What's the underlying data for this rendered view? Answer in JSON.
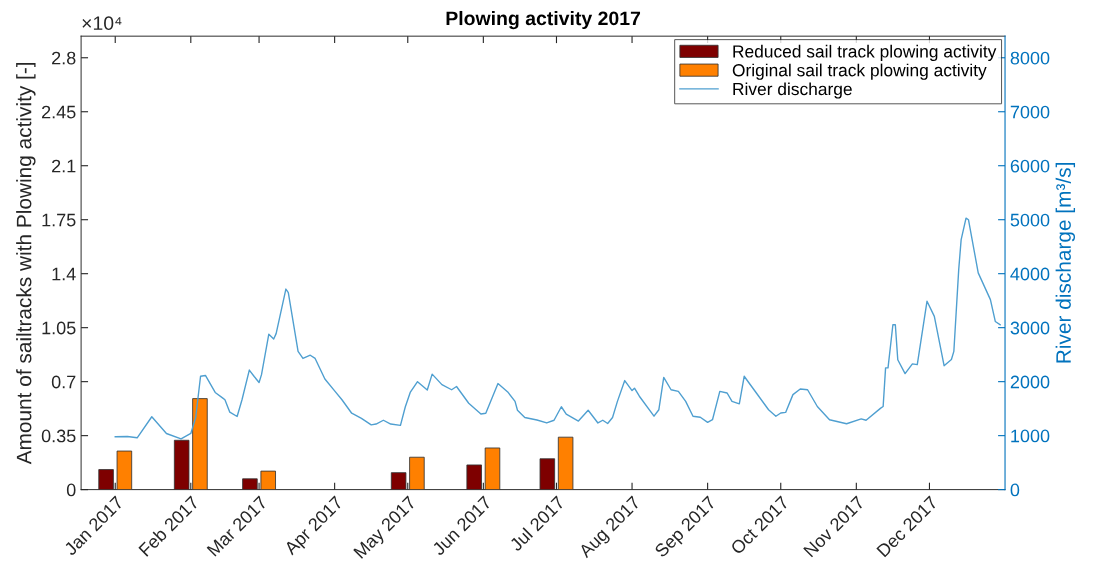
{
  "chart_data": {
    "type": "bar",
    "title": "Plowing activity 2017",
    "ylabel": "Amount of sailtracks with Plowing activity [-]",
    "y2label": "River discharge [m³/s]",
    "annotations": [
      "×10⁴"
    ],
    "x": [
      "2017-01-01",
      "2017-02-01",
      "2017-03-01",
      "2017-04-01",
      "2017-05-01",
      "2017-06-01",
      "2017-07-01"
    ],
    "series": [
      {
        "name": "Reduced sail track plowing activity",
        "color": "#7e0000",
        "values": [
          0.13,
          0.32,
          0.07,
          null,
          0.11,
          0.16,
          0.2
        ]
      },
      {
        "name": "Original sail track plowing activity",
        "color": "#ff8000",
        "values": [
          0.25,
          0.59,
          0.12,
          null,
          0.21,
          0.27,
          0.34
        ]
      },
      {
        "name": "River discharge",
        "type": "line",
        "axis": "y2",
        "color": "#4f9fd0",
        "x": [
          "2017-01-01",
          "2017-01-06",
          "2017-01-10",
          "2017-01-16",
          "2017-01-22",
          "2017-01-28",
          "2017-02-01",
          "2017-02-03",
          "2017-02-05",
          "2017-02-07",
          "2017-02-11",
          "2017-02-14",
          "2017-02-15",
          "2017-02-17",
          "2017-02-20",
          "2017-02-22",
          "2017-02-25",
          "2017-02-27",
          "2017-03-01",
          "2017-03-02",
          "2017-03-05",
          "2017-03-07",
          "2017-03-08",
          "2017-03-12",
          "2017-03-13",
          "2017-03-17",
          "2017-03-19",
          "2017-03-22",
          "2017-03-24",
          "2017-03-28",
          "2017-04-01",
          "2017-04-04",
          "2017-04-08",
          "2017-04-12",
          "2017-04-16",
          "2017-04-18",
          "2017-04-21",
          "2017-04-24",
          "2017-04-28",
          "2017-04-30",
          "2017-05-02",
          "2017-05-05",
          "2017-05-09",
          "2017-05-11",
          "2017-05-15",
          "2017-05-19",
          "2017-05-21",
          "2017-05-26",
          "2017-05-31",
          "2017-06-02",
          "2017-06-07",
          "2017-06-11",
          "2017-06-14",
          "2017-06-15",
          "2017-06-18",
          "2017-06-23",
          "2017-06-27",
          "2017-06-30",
          "2017-07-03",
          "2017-07-05",
          "2017-07-10",
          "2017-07-14",
          "2017-07-18",
          "2017-07-20",
          "2017-07-22",
          "2017-07-24",
          "2017-07-26",
          "2017-07-29",
          "2017-08-01",
          "2017-08-02",
          "2017-08-04",
          "2017-08-10",
          "2017-08-12",
          "2017-08-14",
          "2017-08-17",
          "2017-08-20",
          "2017-08-23",
          "2017-08-26",
          "2017-08-29",
          "2017-09-01",
          "2017-09-03",
          "2017-09-06",
          "2017-09-09",
          "2017-09-11",
          "2017-09-14",
          "2017-09-16",
          "2017-09-18",
          "2017-09-21",
          "2017-09-26",
          "2017-09-29",
          "2017-10-01",
          "2017-10-03",
          "2017-10-06",
          "2017-10-09",
          "2017-10-12",
          "2017-10-16",
          "2017-10-21",
          "2017-10-28",
          "2017-11-03",
          "2017-11-05",
          "2017-11-11",
          "2017-11-12",
          "2017-11-13",
          "2017-11-14",
          "2017-11-16",
          "2017-11-17",
          "2017-11-18",
          "2017-11-21",
          "2017-11-24",
          "2017-11-26",
          "2017-11-30",
          "2017-12-03",
          "2017-12-07",
          "2017-12-10",
          "2017-12-11",
          "2017-12-13",
          "2017-12-14",
          "2017-12-16",
          "2017-12-17",
          "2017-12-21",
          "2017-12-26",
          "2017-12-28",
          "2017-12-30"
        ],
        "values": [
          980,
          985,
          960,
          1350,
          1040,
          940,
          1040,
          1335,
          2100,
          2115,
          1800,
          1700,
          1665,
          1435,
          1355,
          1665,
          2215,
          2095,
          1985,
          2130,
          2880,
          2790,
          2890,
          3715,
          3650,
          2560,
          2430,
          2490,
          2430,
          2050,
          1830,
          1665,
          1415,
          1320,
          1200,
          1215,
          1285,
          1215,
          1190,
          1535,
          1800,
          2000,
          1845,
          2140,
          1945,
          1850,
          1910,
          1600,
          1400,
          1415,
          1965,
          1810,
          1635,
          1470,
          1335,
          1290,
          1235,
          1285,
          1535,
          1400,
          1270,
          1470,
          1235,
          1285,
          1225,
          1335,
          1635,
          2020,
          1835,
          1880,
          1730,
          1360,
          1480,
          2080,
          1850,
          1820,
          1635,
          1360,
          1340,
          1245,
          1295,
          1820,
          1790,
          1635,
          1590,
          2100,
          1975,
          1790,
          1480,
          1360,
          1420,
          1430,
          1760,
          1865,
          1850,
          1540,
          1295,
          1220,
          1310,
          1285,
          1510,
          1540,
          2255,
          2255,
          3055,
          3055,
          2405,
          2150,
          2330,
          2315,
          3490,
          3210,
          2295,
          2410,
          2560,
          4075,
          4630,
          5030,
          5000,
          4015,
          3520,
          3115,
          3055
        ]
      }
    ],
    "xlim": [
      "2016-12-18",
      "2018-01-01"
    ],
    "xticks": [
      {
        "value": "2017-01-01",
        "label": "Jan 2017"
      },
      {
        "value": "2017-02-01",
        "label": "Feb 2017"
      },
      {
        "value": "2017-03-01",
        "label": "Mar 2017"
      },
      {
        "value": "2017-04-01",
        "label": "Apr 2017"
      },
      {
        "value": "2017-05-01",
        "label": "May 2017"
      },
      {
        "value": "2017-06-01",
        "label": "Jun 2017"
      },
      {
        "value": "2017-07-01",
        "label": "Jul 2017"
      },
      {
        "value": "2017-08-01",
        "label": "Aug 2017"
      },
      {
        "value": "2017-09-01",
        "label": "Sep 2017"
      },
      {
        "value": "2017-10-01",
        "label": "Oct 2017"
      },
      {
        "value": "2017-11-01",
        "label": "Nov 2017"
      },
      {
        "value": "2017-12-01",
        "label": "Dec 2017"
      }
    ],
    "ylim": [
      0,
      2.94
    ],
    "yticks": [
      0,
      0.35,
      0.7,
      1.05,
      1.4,
      1.75,
      2.1,
      2.45,
      2.8
    ],
    "y2lim": [
      0,
      8400
    ],
    "y2ticks": [
      0,
      1000,
      2000,
      3000,
      4000,
      5000,
      6000,
      7000,
      8000
    ],
    "legend": "top right"
  }
}
